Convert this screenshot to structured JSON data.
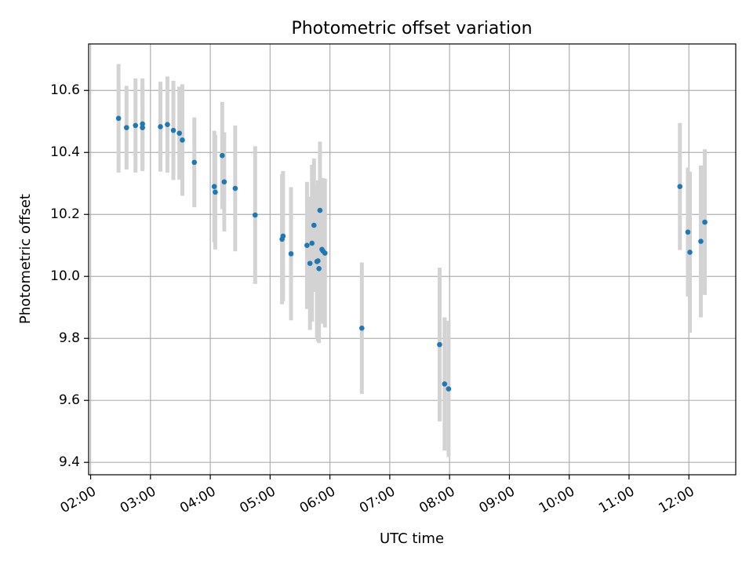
{
  "chart_data": {
    "type": "scatter",
    "title": "Photometric offset variation",
    "xlabel": "UTC time",
    "ylabel": "Photometric offset",
    "xlim": [
      "01:58",
      "12:47"
    ],
    "ylim": [
      9.36,
      10.75
    ],
    "x_ticks": [
      "02:00",
      "03:00",
      "04:00",
      "05:00",
      "06:00",
      "07:00",
      "08:00",
      "09:00",
      "10:00",
      "11:00",
      "12:00"
    ],
    "y_ticks": [
      9.4,
      9.6,
      9.8,
      10.0,
      10.2,
      10.4,
      10.6
    ],
    "grid": true,
    "colors": {
      "point": "#1f77b4",
      "errorbar": "#d3d3d3",
      "grid": "#b0b0b0",
      "axes": "#000000"
    },
    "points": [
      {
        "x": "02:28",
        "y": 10.51,
        "err": 0.175
      },
      {
        "x": "02:36",
        "y": 10.48,
        "err": 0.135
      },
      {
        "x": "02:45",
        "y": 10.487,
        "err": 0.152
      },
      {
        "x": "02:52",
        "y": 10.492,
        "err": 0.147
      },
      {
        "x": "02:52",
        "y": 10.48,
        "err": 0.14
      },
      {
        "x": "03:10",
        "y": 10.483,
        "err": 0.145
      },
      {
        "x": "03:17",
        "y": 10.49,
        "err": 0.155
      },
      {
        "x": "03:23",
        "y": 10.471,
        "err": 0.16
      },
      {
        "x": "03:29",
        "y": 10.462,
        "err": 0.15
      },
      {
        "x": "03:32",
        "y": 10.44,
        "err": 0.18
      },
      {
        "x": "03:44",
        "y": 10.368,
        "err": 0.145
      },
      {
        "x": "04:04",
        "y": 10.29,
        "err": 0.18
      },
      {
        "x": "04:05",
        "y": 10.272,
        "err": 0.185
      },
      {
        "x": "04:12",
        "y": 10.39,
        "err": 0.173
      },
      {
        "x": "04:14",
        "y": 10.305,
        "err": 0.16
      },
      {
        "x": "04:25",
        "y": 10.284,
        "err": 0.203
      },
      {
        "x": "04:45",
        "y": 10.198,
        "err": 0.222
      },
      {
        "x": "05:12",
        "y": 10.12,
        "err": 0.21
      },
      {
        "x": "05:13",
        "y": 10.13,
        "err": 0.21
      },
      {
        "x": "05:21",
        "y": 10.073,
        "err": 0.215
      },
      {
        "x": "05:37",
        "y": 10.1,
        "err": 0.205
      },
      {
        "x": "05:40",
        "y": 10.042,
        "err": 0.215
      },
      {
        "x": "05:42",
        "y": 10.107,
        "err": 0.253
      },
      {
        "x": "05:44",
        "y": 10.165,
        "err": 0.215
      },
      {
        "x": "05:47",
        "y": 10.048,
        "err": 0.245
      },
      {
        "x": "05:48",
        "y": 10.05,
        "err": 0.26
      },
      {
        "x": "05:49",
        "y": 10.025,
        "err": 0.24
      },
      {
        "x": "05:50",
        "y": 10.213,
        "err": 0.222
      },
      {
        "x": "05:52",
        "y": 10.087,
        "err": 0.23
      },
      {
        "x": "05:53",
        "y": 10.082,
        "err": 0.235
      },
      {
        "x": "05:55",
        "y": 10.075,
        "err": 0.24
      },
      {
        "x": "06:32",
        "y": 9.833,
        "err": 0.212
      },
      {
        "x": "07:50",
        "y": 9.78,
        "err": 0.248
      },
      {
        "x": "07:55",
        "y": 9.653,
        "err": 0.215
      },
      {
        "x": "07:59",
        "y": 9.637,
        "err": 0.22
      },
      {
        "x": "11:51",
        "y": 10.29,
        "err": 0.205
      },
      {
        "x": "11:59",
        "y": 10.143,
        "err": 0.208
      },
      {
        "x": "12:01",
        "y": 10.078,
        "err": 0.26
      },
      {
        "x": "12:12",
        "y": 10.113,
        "err": 0.245
      },
      {
        "x": "12:16",
        "y": 10.175,
        "err": 0.235
      }
    ]
  }
}
